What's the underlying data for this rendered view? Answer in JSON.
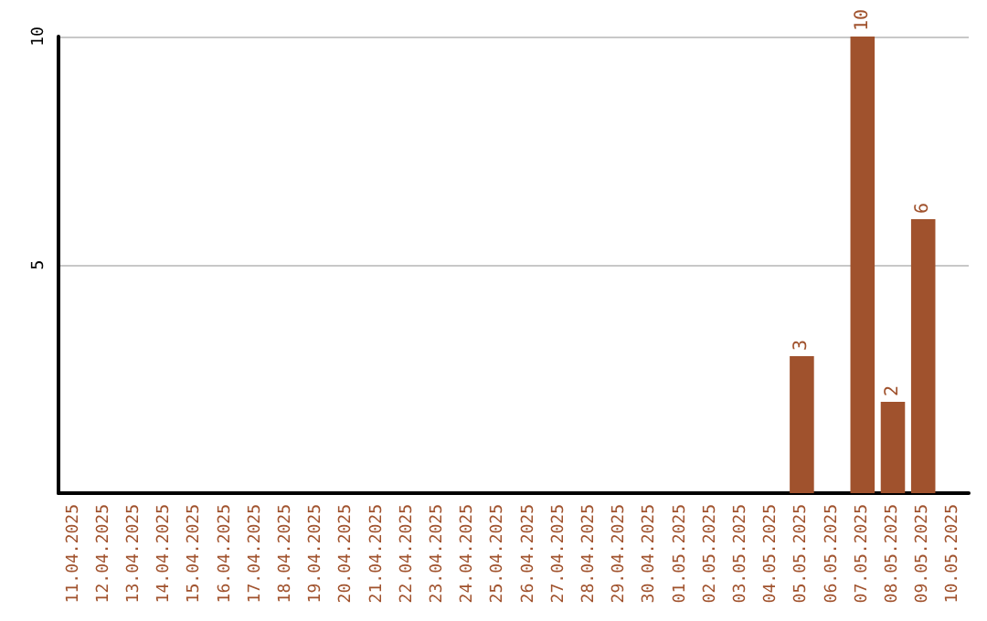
{
  "chart_data": {
    "type": "bar",
    "categories": [
      "11.04.2025",
      "12.04.2025",
      "13.04.2025",
      "14.04.2025",
      "15.04.2025",
      "16.04.2025",
      "17.04.2025",
      "18.04.2025",
      "19.04.2025",
      "20.04.2025",
      "21.04.2025",
      "22.04.2025",
      "23.04.2025",
      "24.04.2025",
      "25.04.2025",
      "26.04.2025",
      "27.04.2025",
      "28.04.2025",
      "29.04.2025",
      "30.04.2025",
      "01.05.2025",
      "02.05.2025",
      "03.05.2025",
      "04.05.2025",
      "05.05.2025",
      "06.05.2025",
      "07.05.2025",
      "08.05.2025",
      "09.05.2025",
      "10.05.2025"
    ],
    "values": [
      0,
      0,
      0,
      0,
      0,
      0,
      0,
      0,
      0,
      0,
      0,
      0,
      0,
      0,
      0,
      0,
      0,
      0,
      0,
      0,
      0,
      0,
      0,
      0,
      3,
      0,
      10,
      2,
      6,
      0
    ],
    "value_labels": [
      null,
      null,
      null,
      null,
      null,
      null,
      null,
      null,
      null,
      null,
      null,
      null,
      null,
      null,
      null,
      null,
      null,
      null,
      null,
      null,
      null,
      null,
      null,
      null,
      "3",
      null,
      "10",
      "2",
      "6",
      null
    ],
    "color": "#a0522d",
    "ylim": [
      0,
      10
    ],
    "yticks": [
      {
        "value": 0,
        "label": null
      },
      5,
      10
    ],
    "grid": "y"
  }
}
